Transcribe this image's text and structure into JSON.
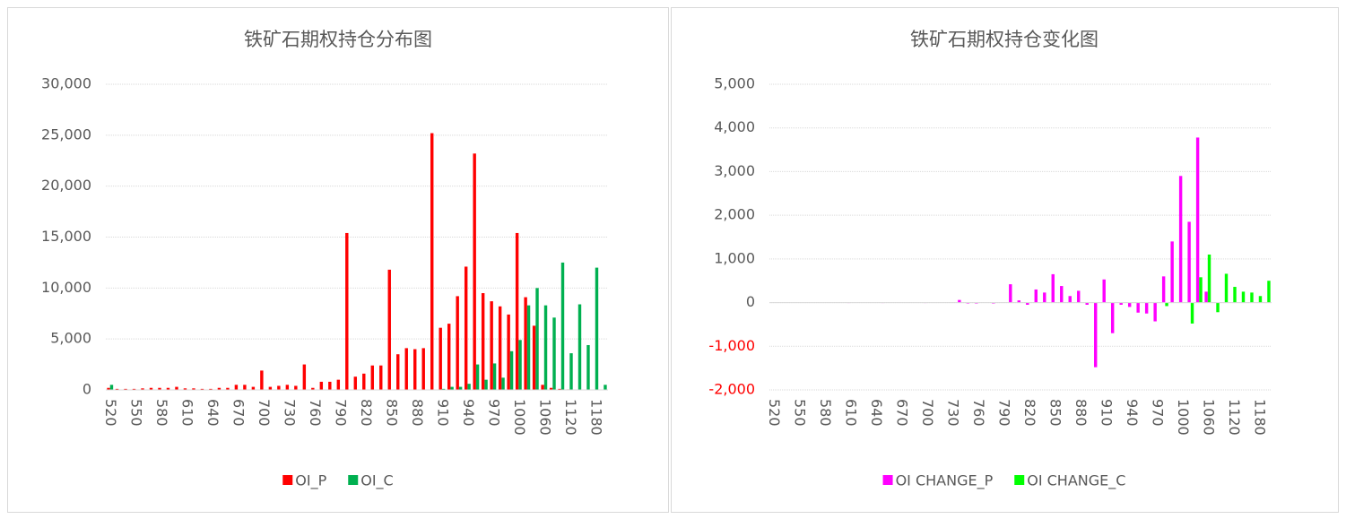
{
  "chart_data": [
    {
      "type": "bar",
      "title": "铁矿石期权持仓分布图",
      "categories": [
        "520",
        null,
        null,
        "550",
        null,
        null,
        "580",
        null,
        null,
        "610",
        null,
        null,
        "640",
        null,
        null,
        "670",
        null,
        null,
        "700",
        null,
        null,
        "730",
        null,
        null,
        "760",
        null,
        null,
        "790",
        null,
        null,
        "820",
        null,
        null,
        "850",
        null,
        null,
        "880",
        null,
        null,
        "910",
        null,
        null,
        "940",
        null,
        null,
        "970",
        null,
        null,
        "1000",
        null,
        null,
        "1060",
        null,
        null,
        "1120",
        null,
        null,
        "1180",
        null
      ],
      "series": [
        {
          "name": "OI_P",
          "color": "#ff0000",
          "values": [
            200,
            100,
            100,
            100,
            150,
            200,
            200,
            200,
            300,
            150,
            150,
            100,
            100,
            200,
            200,
            500,
            500,
            300,
            1900,
            300,
            400,
            500,
            400,
            2500,
            200,
            800,
            800,
            1000,
            15400,
            1300,
            1600,
            2400,
            2400,
            11800,
            3500,
            4100,
            4000,
            4100,
            25200,
            6100,
            6500,
            9200,
            12100,
            23200,
            9500,
            8700,
            8200,
            7400,
            15400,
            9100,
            6300,
            500,
            200,
            100,
            50,
            0,
            0,
            0,
            0
          ]
        },
        {
          "name": "OI_C",
          "color": "#00b050",
          "values": [
            500,
            0,
            0,
            0,
            0,
            0,
            0,
            0,
            0,
            0,
            0,
            0,
            0,
            0,
            0,
            0,
            0,
            0,
            0,
            0,
            0,
            0,
            0,
            0,
            0,
            0,
            0,
            0,
            0,
            0,
            0,
            0,
            0,
            0,
            0,
            0,
            0,
            0,
            0,
            100,
            300,
            300,
            600,
            2500,
            1000,
            2600,
            1200,
            3800,
            4900,
            8300,
            10000,
            8300,
            7100,
            12500,
            3600,
            8400,
            4400,
            12000,
            500
          ]
        }
      ],
      "ylim": [
        0,
        30000
      ],
      "yticks": [
        {
          "value": 0,
          "label": "0"
        },
        {
          "value": 5000,
          "label": "5,000"
        },
        {
          "value": 10000,
          "label": "10,000"
        },
        {
          "value": 15000,
          "label": "15,000"
        },
        {
          "value": 20000,
          "label": "20,000"
        },
        {
          "value": 25000,
          "label": "25,000"
        },
        {
          "value": 30000,
          "label": "30,000"
        }
      ],
      "grid": true,
      "legend": "bottom"
    },
    {
      "type": "bar",
      "title": "铁矿石期权持仓变化图",
      "categories": [
        "520",
        null,
        null,
        "550",
        null,
        null,
        "580",
        null,
        null,
        "610",
        null,
        null,
        "640",
        null,
        null,
        "670",
        null,
        null,
        "700",
        null,
        null,
        "730",
        null,
        null,
        "760",
        null,
        null,
        "790",
        null,
        null,
        "820",
        null,
        null,
        "850",
        null,
        null,
        "880",
        null,
        null,
        "910",
        null,
        null,
        "940",
        null,
        null,
        "970",
        null,
        null,
        "1000",
        null,
        null,
        "1060",
        null,
        null,
        "1120",
        null,
        null,
        "1180",
        null
      ],
      "series": [
        {
          "name": "OI CHANGE_P",
          "color": "#ff00ff",
          "values": [
            0,
            0,
            0,
            0,
            0,
            0,
            0,
            0,
            0,
            -10,
            0,
            0,
            0,
            -10,
            0,
            0,
            0,
            0,
            -10,
            0,
            0,
            0,
            60,
            -20,
            -20,
            0,
            -20,
            0,
            420,
            50,
            -50,
            300,
            230,
            650,
            380,
            150,
            270,
            -50,
            -1480,
            530,
            -700,
            -50,
            -100,
            -230,
            -250,
            -430,
            600,
            1400,
            2900,
            1850,
            3780,
            250,
            0,
            0,
            0,
            0,
            0,
            0,
            0
          ]
        },
        {
          "name": "OI CHANGE_C",
          "color": "#00ff00",
          "values": [
            0,
            0,
            0,
            0,
            0,
            0,
            0,
            0,
            0,
            0,
            0,
            0,
            0,
            0,
            0,
            0,
            0,
            0,
            0,
            0,
            0,
            0,
            0,
            0,
            0,
            0,
            0,
            0,
            0,
            0,
            0,
            0,
            0,
            0,
            0,
            0,
            0,
            0,
            0,
            0,
            0,
            0,
            0,
            0,
            0,
            0,
            -80,
            0,
            0,
            -480,
            580,
            1100,
            -220,
            660,
            360,
            250,
            230,
            150,
            500
          ]
        }
      ],
      "ylim": [
        -2000,
        5000
      ],
      "yticks": [
        {
          "value": -2000,
          "label": "-2,000"
        },
        {
          "value": -1000,
          "label": "-1,000"
        },
        {
          "value": 0,
          "label": "0"
        },
        {
          "value": 1000,
          "label": "1,000"
        },
        {
          "value": 2000,
          "label": "2,000"
        },
        {
          "value": 3000,
          "label": "3,000"
        },
        {
          "value": 4000,
          "label": "4,000"
        },
        {
          "value": 5000,
          "label": "5,000"
        }
      ],
      "negative_tick_color": "#ff0000",
      "grid": true,
      "legend": "bottom"
    }
  ]
}
